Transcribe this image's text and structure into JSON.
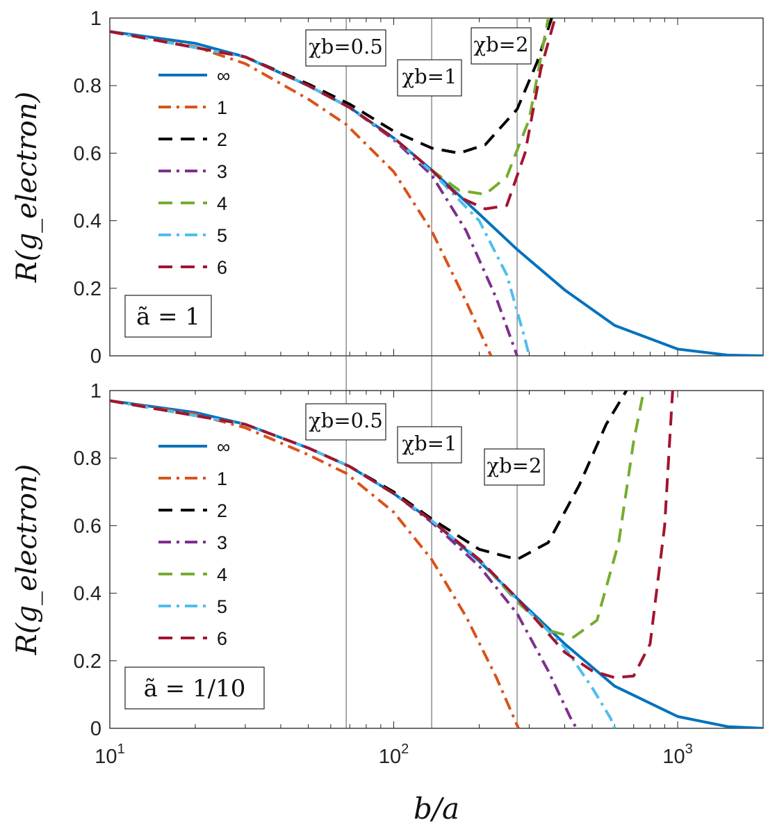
{
  "chart_data": [
    {
      "type": "line",
      "panel": "top",
      "title": "",
      "panel_label": "ã = 1",
      "ylabel": "R(g_electron)",
      "xlabel": "b/a",
      "xscale": "log",
      "xlim": [
        10,
        2000
      ],
      "ylim": [
        0,
        1
      ],
      "yticks": [
        "0",
        "0.2",
        "0.4",
        "0.6",
        "0.8",
        "1"
      ],
      "vlines": [
        {
          "x": 68,
          "label": "χb=0.5"
        },
        {
          "x": 136,
          "label": "χb=1"
        },
        {
          "x": 272,
          "label": "χb=2"
        }
      ],
      "legend_position": "top-left",
      "series": [
        {
          "name": "∞",
          "color": "#0072BD",
          "style": "solid",
          "x": [
            10,
            20,
            30,
            50,
            70,
            100,
            136,
            200,
            272,
            400,
            600,
            1000,
            1500,
            2000
          ],
          "y": [
            0.96,
            0.925,
            0.885,
            0.8,
            0.735,
            0.645,
            0.55,
            0.42,
            0.315,
            0.195,
            0.09,
            0.02,
            0.002,
            0.0
          ]
        },
        {
          "name": "1",
          "color": "#D95319",
          "style": "dashdot",
          "x": [
            10,
            20,
            30,
            50,
            68,
            100,
            136,
            180,
            220
          ],
          "y": [
            0.96,
            0.915,
            0.865,
            0.76,
            0.685,
            0.545,
            0.37,
            0.16,
            0.0
          ]
        },
        {
          "name": "2",
          "color": "#000000",
          "style": "dashed",
          "x": [
            10,
            30,
            50,
            70,
            100,
            136,
            170,
            210,
            272,
            320,
            360
          ],
          "y": [
            0.96,
            0.885,
            0.805,
            0.745,
            0.665,
            0.615,
            0.6,
            0.625,
            0.73,
            0.87,
            1.0
          ]
        },
        {
          "name": "3",
          "color": "#7E2F8E",
          "style": "dashdot",
          "x": [
            10,
            30,
            50,
            70,
            100,
            136,
            180,
            230,
            272
          ],
          "y": [
            0.96,
            0.885,
            0.8,
            0.735,
            0.64,
            0.535,
            0.37,
            0.17,
            0.0
          ]
        },
        {
          "name": "4",
          "color": "#77AC30",
          "style": "dashed",
          "x": [
            10,
            30,
            50,
            70,
            100,
            136,
            170,
            210,
            250,
            300,
            350
          ],
          "y": [
            0.96,
            0.885,
            0.8,
            0.735,
            0.645,
            0.55,
            0.49,
            0.478,
            0.53,
            0.7,
            1.0
          ]
        },
        {
          "name": "5",
          "color": "#4DBEEE",
          "style": "dashdot",
          "x": [
            10,
            30,
            50,
            70,
            100,
            136,
            200,
            250,
            290,
            300
          ],
          "y": [
            0.96,
            0.885,
            0.8,
            0.735,
            0.645,
            0.545,
            0.4,
            0.24,
            0.05,
            0.0
          ]
        },
        {
          "name": "6",
          "color": "#A2142F",
          "style": "dashed",
          "x": [
            10,
            30,
            50,
            70,
            100,
            136,
            170,
            210,
            250,
            290,
            330,
            370
          ],
          "y": [
            0.96,
            0.885,
            0.8,
            0.735,
            0.645,
            0.55,
            0.47,
            0.435,
            0.445,
            0.6,
            0.85,
            1.0
          ]
        }
      ]
    },
    {
      "type": "line",
      "panel": "bottom",
      "title": "",
      "panel_label": "ã = 1/10",
      "ylabel": "R(g_electron)",
      "xlabel": "b/a",
      "xscale": "log",
      "xlim": [
        10,
        2000
      ],
      "ylim": [
        0,
        1
      ],
      "yticks": [
        "0",
        "0.2",
        "0.4",
        "0.6",
        "0.8",
        "1"
      ],
      "xticks": [
        {
          "value": 10,
          "base": "10",
          "exp": "1"
        },
        {
          "value": 100,
          "base": "10",
          "exp": "2"
        },
        {
          "value": 1000,
          "base": "10",
          "exp": "3"
        }
      ],
      "vlines": [
        {
          "x": 68,
          "label": "χb=0.5"
        },
        {
          "x": 136,
          "label": "χb=1"
        },
        {
          "x": 272,
          "label": "χb=2"
        }
      ],
      "legend_position": "top-left",
      "series": [
        {
          "name": "∞",
          "color": "#0072BD",
          "style": "solid",
          "x": [
            10,
            20,
            30,
            50,
            70,
            100,
            136,
            200,
            272,
            400,
            600,
            1000,
            1500,
            2000
          ],
          "y": [
            0.97,
            0.935,
            0.9,
            0.83,
            0.775,
            0.695,
            0.615,
            0.495,
            0.385,
            0.25,
            0.125,
            0.035,
            0.005,
            0.0
          ]
        },
        {
          "name": "1",
          "color": "#D95319",
          "style": "dashdot",
          "x": [
            10,
            20,
            30,
            50,
            68,
            100,
            136,
            180,
            230,
            275
          ],
          "y": [
            0.97,
            0.93,
            0.89,
            0.81,
            0.755,
            0.64,
            0.5,
            0.33,
            0.15,
            0.0
          ]
        },
        {
          "name": "2",
          "color": "#000000",
          "style": "dashed",
          "x": [
            10,
            30,
            50,
            70,
            100,
            136,
            200,
            272,
            350,
            450,
            560,
            660
          ],
          "y": [
            0.97,
            0.9,
            0.83,
            0.775,
            0.7,
            0.62,
            0.53,
            0.5,
            0.55,
            0.72,
            0.9,
            1.0
          ]
        },
        {
          "name": "3",
          "color": "#7E2F8E",
          "style": "dashdot",
          "x": [
            10,
            30,
            50,
            70,
            100,
            136,
            200,
            272,
            350,
            420,
            440
          ],
          "y": [
            0.97,
            0.9,
            0.83,
            0.775,
            0.695,
            0.61,
            0.48,
            0.34,
            0.17,
            0.03,
            0.0
          ]
        },
        {
          "name": "4",
          "color": "#77AC30",
          "style": "dashed",
          "x": [
            10,
            30,
            50,
            70,
            100,
            136,
            200,
            272,
            350,
            430,
            520,
            620,
            700,
            760
          ],
          "y": [
            0.97,
            0.9,
            0.83,
            0.775,
            0.695,
            0.615,
            0.5,
            0.375,
            0.29,
            0.27,
            0.32,
            0.55,
            0.85,
            1.0
          ]
        },
        {
          "name": "5",
          "color": "#4DBEEE",
          "style": "dashdot",
          "x": [
            10,
            30,
            50,
            70,
            100,
            136,
            200,
            272,
            400,
            500,
            580,
            600
          ],
          "y": [
            0.97,
            0.9,
            0.83,
            0.775,
            0.695,
            0.615,
            0.5,
            0.38,
            0.24,
            0.12,
            0.03,
            0.0
          ]
        },
        {
          "name": "6",
          "color": "#A2142F",
          "style": "dashed",
          "x": [
            10,
            30,
            50,
            70,
            100,
            136,
            200,
            272,
            400,
            500,
            600,
            700,
            800,
            900,
            960
          ],
          "y": [
            0.97,
            0.9,
            0.83,
            0.775,
            0.695,
            0.615,
            0.5,
            0.385,
            0.225,
            0.17,
            0.15,
            0.155,
            0.25,
            0.6,
            1.0
          ]
        }
      ]
    }
  ]
}
